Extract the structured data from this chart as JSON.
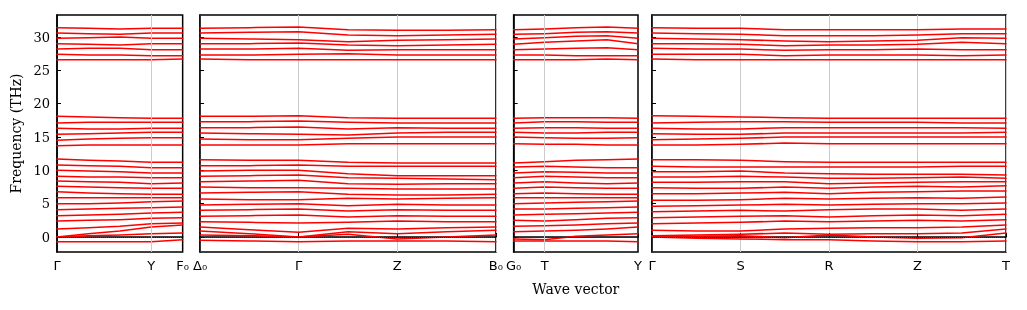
{
  "chart_data": [
    {
      "type": "line",
      "ylabel": "Frequency (THz)",
      "categories": [
        "Γ",
        null,
        null,
        "Y",
        "F₀"
      ],
      "ylim": [
        -2.25,
        33.3
      ],
      "yticks": [
        0,
        5,
        10,
        15,
        20,
        25,
        30
      ],
      "ref_lines": [
        {
          "axis": "y",
          "value": 0,
          "color": "#0000ff",
          "line_style": "dotted"
        },
        {
          "axis": "x",
          "value": "Y",
          "color": "#cccccc",
          "line_style": "solid"
        }
      ],
      "series": [
        {
          "color": "#ff0000",
          "values": [
            -0.7,
            -0.7,
            -0.7,
            -0.7,
            -0.4
          ]
        },
        {
          "color": "#ff0000",
          "values": [
            0,
            0.2,
            0.3,
            0.5,
            0.6
          ]
        },
        {
          "color": "#ff0000",
          "values": [
            0,
            0.5,
            0.9,
            1.5,
            1.8
          ]
        },
        {
          "color": "#ff0000",
          "values": [
            1.2,
            1.4,
            1.6,
            2.0,
            2.1
          ]
        },
        {
          "color": "#ff0000",
          "values": [
            2.4,
            2.5,
            2.6,
            2.8,
            2.9
          ]
        },
        {
          "color": "#ff0000",
          "values": [
            3.2,
            3.3,
            3.4,
            3.6,
            3.7
          ]
        },
        {
          "color": "#ff0000",
          "values": [
            4.1,
            4.2,
            4.3,
            4.4,
            4.5
          ]
        },
        {
          "color": "#ff0000",
          "values": [
            5.0,
            5.0,
            5.1,
            5.3,
            5.4
          ]
        },
        {
          "color": "#ff0000",
          "values": [
            5.9,
            5.9,
            5.9,
            5.9,
            5.9
          ]
        },
        {
          "color": "#ff0000",
          "values": [
            6.8,
            6.6,
            6.5,
            6.4,
            6.4
          ]
        },
        {
          "color": "#ff0000",
          "values": [
            7.6,
            7.5,
            7.4,
            7.3,
            7.3
          ]
        },
        {
          "color": "#ff0000",
          "values": [
            8.4,
            8.3,
            8.2,
            8.0,
            8.1
          ]
        },
        {
          "color": "#ff0000",
          "values": [
            9.1,
            9.0,
            9.0,
            8.9,
            8.9
          ]
        },
        {
          "color": "#ff0000",
          "values": [
            10.0,
            9.9,
            9.8,
            9.6,
            9.6
          ]
        },
        {
          "color": "#ff0000",
          "values": [
            10.8,
            10.7,
            10.6,
            10.4,
            10.4
          ]
        },
        {
          "color": "#ff0000",
          "values": [
            11.7,
            11.5,
            11.4,
            11.2,
            11.2
          ]
        },
        {
          "color": "#ff0000",
          "values": [
            13.7,
            13.8,
            13.8,
            13.8,
            13.8
          ]
        },
        {
          "color": "#ff0000",
          "values": [
            14.5,
            14.7,
            14.8,
            14.9,
            14.9
          ]
        },
        {
          "color": "#ff0000",
          "values": [
            15.4,
            15.5,
            15.6,
            15.7,
            15.7
          ]
        },
        {
          "color": "#ff0000",
          "values": [
            16.3,
            16.2,
            16.2,
            16.3,
            16.3
          ]
        },
        {
          "color": "#ff0000",
          "values": [
            17.1,
            17.2,
            17.2,
            17.2,
            17.2
          ]
        },
        {
          "color": "#ff0000",
          "values": [
            18.1,
            18.0,
            17.9,
            17.8,
            17.8
          ]
        },
        {
          "color": "#ff0000",
          "values": [
            26.6,
            26.6,
            26.6,
            26.6,
            26.7
          ]
        },
        {
          "color": "#ff0000",
          "values": [
            27.4,
            27.3,
            27.3,
            27.2,
            27.2
          ]
        },
        {
          "color": "#ff0000",
          "values": [
            28.2,
            28.3,
            28.3,
            28.1,
            28.1
          ]
        },
        {
          "color": "#ff0000",
          "values": [
            29.0,
            28.9,
            28.8,
            29.0,
            29.0
          ]
        },
        {
          "color": "#ff0000",
          "values": [
            29.8,
            29.9,
            30.0,
            29.8,
            29.8
          ]
        },
        {
          "color": "#ff0000",
          "values": [
            30.6,
            30.5,
            30.4,
            30.6,
            30.6
          ]
        },
        {
          "color": "#ff0000",
          "values": [
            31.4,
            31.3,
            31.2,
            31.3,
            31.3
          ]
        }
      ]
    },
    {
      "type": "line",
      "categories": [
        "Δ₀",
        null,
        "Γ",
        null,
        "Z",
        null,
        "B₀"
      ],
      "ylim": [
        -2.25,
        33.3
      ],
      "yticks": [
        0,
        5,
        10,
        15,
        20,
        25,
        30
      ],
      "tick_labels": "x",
      "grid": "x",
      "ref_lines": [
        {
          "axis": "y",
          "value": 0,
          "color": "#0000ff",
          "line_style": "dotted"
        }
      ],
      "series": [
        {
          "color": "#ff0000",
          "values": [
            -0.5,
            -0.6,
            -0.7,
            -0.6,
            -0.6,
            -0.6,
            -0.7
          ]
        },
        {
          "color": "#ff0000",
          "values": [
            0.3,
            0.2,
            0,
            0.4,
            -0.3,
            0,
            0.3
          ]
        },
        {
          "color": "#ff0000",
          "values": [
            0.9,
            0.5,
            0,
            0.8,
            0.5,
            0.8,
            1.0
          ]
        },
        {
          "color": "#ff0000",
          "values": [
            1.5,
            1.1,
            0.7,
            1.3,
            1.2,
            1.4,
            1.5
          ]
        },
        {
          "color": "#ff0000",
          "values": [
            2.3,
            2.2,
            2.1,
            2.2,
            2.4,
            2.3,
            2.3
          ]
        },
        {
          "color": "#ff0000",
          "values": [
            3.1,
            3.2,
            3.3,
            3.0,
            3.2,
            3.1,
            3.1
          ]
        },
        {
          "color": "#ff0000",
          "values": [
            4.0,
            4.1,
            4.2,
            3.9,
            4.1,
            4.0,
            4.0
          ]
        },
        {
          "color": "#ff0000",
          "values": [
            4.8,
            4.9,
            5.0,
            4.7,
            4.9,
            4.8,
            4.8
          ]
        },
        {
          "color": "#ff0000",
          "values": [
            5.7,
            5.6,
            5.6,
            5.8,
            5.7,
            5.8,
            5.9
          ]
        },
        {
          "color": "#ff0000",
          "values": [
            6.6,
            6.7,
            6.8,
            6.4,
            6.3,
            6.3,
            6.4
          ]
        },
        {
          "color": "#ff0000",
          "values": [
            7.5,
            7.4,
            7.4,
            7.3,
            7.2,
            7.2,
            7.2
          ]
        },
        {
          "color": "#ff0000",
          "values": [
            8.3,
            8.4,
            8.5,
            8.0,
            7.9,
            8.0,
            8.0
          ]
        },
        {
          "color": "#ff0000",
          "values": [
            9.1,
            9.2,
            9.3,
            8.9,
            8.8,
            8.7,
            8.6
          ]
        },
        {
          "color": "#ff0000",
          "values": [
            9.9,
            10.0,
            10.0,
            9.5,
            9.2,
            9.2,
            9.2
          ]
        },
        {
          "color": "#ff0000",
          "values": [
            10.7,
            10.7,
            10.8,
            10.6,
            10.6,
            10.6,
            10.6
          ]
        },
        {
          "color": "#ff0000",
          "values": [
            11.6,
            11.5,
            11.5,
            11.2,
            11.1,
            11.1,
            11.1
          ]
        },
        {
          "color": "#ff0000",
          "values": [
            13.8,
            13.8,
            13.8,
            14.0,
            14.0,
            14.0,
            14.0
          ]
        },
        {
          "color": "#ff0000",
          "values": [
            14.7,
            14.6,
            14.6,
            14.8,
            15.0,
            15.0,
            15.0
          ]
        },
        {
          "color": "#ff0000",
          "values": [
            15.6,
            15.5,
            15.4,
            15.3,
            15.6,
            15.7,
            15.7
          ]
        },
        {
          "color": "#ff0000",
          "values": [
            16.4,
            16.4,
            16.5,
            16.2,
            16.4,
            16.3,
            16.3
          ]
        },
        {
          "color": "#ff0000",
          "values": [
            17.3,
            17.3,
            17.4,
            17.2,
            17.1,
            17.1,
            17.1
          ]
        },
        {
          "color": "#ff0000",
          "values": [
            18.1,
            18.1,
            18.2,
            17.9,
            17.8,
            17.8,
            17.8
          ]
        },
        {
          "color": "#ff0000",
          "values": [
            26.7,
            26.6,
            26.6,
            26.6,
            26.6,
            26.6,
            26.6
          ]
        },
        {
          "color": "#ff0000",
          "values": [
            27.3,
            27.3,
            27.4,
            27.5,
            27.3,
            27.3,
            27.3
          ]
        },
        {
          "color": "#ff0000",
          "values": [
            28.2,
            28.2,
            28.3,
            28.0,
            28.1,
            28.1,
            28.1
          ]
        },
        {
          "color": "#ff0000",
          "values": [
            29.0,
            29.0,
            29.1,
            28.8,
            28.7,
            28.8,
            28.9
          ]
        },
        {
          "color": "#ff0000",
          "values": [
            29.8,
            29.7,
            29.6,
            29.3,
            29.5,
            29.6,
            29.7
          ]
        },
        {
          "color": "#ff0000",
          "values": [
            30.6,
            30.7,
            30.8,
            30.3,
            30.2,
            30.3,
            30.4
          ]
        },
        {
          "color": "#ff0000",
          "values": [
            31.3,
            31.4,
            31.5,
            31.1,
            31.0,
            31.0,
            31.1
          ]
        }
      ]
    },
    {
      "type": "line",
      "xlabel": "Wave vector",
      "categories": [
        "G₀",
        "T",
        null,
        null,
        "Y"
      ],
      "ylim": [
        -2.25,
        33.3
      ],
      "yticks": [
        0,
        5,
        10,
        15,
        20,
        25,
        30
      ],
      "tick_labels": "x",
      "ref_lines": [
        {
          "axis": "y",
          "value": 0,
          "color": "#0000ff",
          "line_style": "dotted"
        },
        {
          "axis": "x",
          "value": "T",
          "color": "#cccccc",
          "line_style": "solid"
        }
      ],
      "series": [
        {
          "color": "#ff0000",
          "values": [
            -0.6,
            -0.6,
            -0.6,
            -0.6,
            -0.7
          ]
        },
        {
          "color": "#ff0000",
          "values": [
            -0.3,
            -0.4,
            0.1,
            0.3,
            0.5
          ]
        },
        {
          "color": "#ff0000",
          "values": [
            0.8,
            0.9,
            1.0,
            1.2,
            1.5
          ]
        },
        {
          "color": "#ff0000",
          "values": [
            1.6,
            1.7,
            1.8,
            2.0,
            2.1
          ]
        },
        {
          "color": "#ff0000",
          "values": [
            2.5,
            2.4,
            2.6,
            2.8,
            2.9
          ]
        },
        {
          "color": "#ff0000",
          "values": [
            3.3,
            3.4,
            3.5,
            3.6,
            3.7
          ]
        },
        {
          "color": "#ff0000",
          "values": [
            4.2,
            4.2,
            4.3,
            4.4,
            4.5
          ]
        },
        {
          "color": "#ff0000",
          "values": [
            5.0,
            5.1,
            5.2,
            5.3,
            5.4
          ]
        },
        {
          "color": "#ff0000",
          "values": [
            5.9,
            5.9,
            5.9,
            5.9,
            5.9
          ]
        },
        {
          "color": "#ff0000",
          "values": [
            6.5,
            6.6,
            6.5,
            6.4,
            6.4
          ]
        },
        {
          "color": "#ff0000",
          "values": [
            7.3,
            7.5,
            7.4,
            7.3,
            7.3
          ]
        },
        {
          "color": "#ff0000",
          "values": [
            8.1,
            8.3,
            8.1,
            8.0,
            8.1
          ]
        },
        {
          "color": "#ff0000",
          "values": [
            8.9,
            9.1,
            9.0,
            8.9,
            8.9
          ]
        },
        {
          "color": "#ff0000",
          "values": [
            9.6,
            9.8,
            9.7,
            9.6,
            9.6
          ]
        },
        {
          "color": "#ff0000",
          "values": [
            10.5,
            10.6,
            10.5,
            10.4,
            10.4
          ]
        },
        {
          "color": "#ff0000",
          "values": [
            11.1,
            11.3,
            11.5,
            11.6,
            11.7
          ]
        },
        {
          "color": "#ff0000",
          "values": [
            14.0,
            13.9,
            13.9,
            13.8,
            13.8
          ]
        },
        {
          "color": "#ff0000",
          "values": [
            15.0,
            14.9,
            14.8,
            14.8,
            14.9
          ]
        },
        {
          "color": "#ff0000",
          "values": [
            15.7,
            15.6,
            15.6,
            15.7,
            15.7
          ]
        },
        {
          "color": "#ff0000",
          "values": [
            16.3,
            16.4,
            16.4,
            16.3,
            16.3
          ]
        },
        {
          "color": "#ff0000",
          "values": [
            17.1,
            17.3,
            17.3,
            17.2,
            17.2
          ]
        },
        {
          "color": "#ff0000",
          "values": [
            17.8,
            17.9,
            17.9,
            17.9,
            17.8
          ]
        },
        {
          "color": "#ff0000",
          "values": [
            26.6,
            26.6,
            26.6,
            26.7,
            26.6
          ]
        },
        {
          "color": "#ff0000",
          "values": [
            27.3,
            27.3,
            27.2,
            27.2,
            27.2
          ]
        },
        {
          "color": "#ff0000",
          "values": [
            28.1,
            28.2,
            28.3,
            28.4,
            28.1
          ]
        },
        {
          "color": "#ff0000",
          "values": [
            28.9,
            29.2,
            29.4,
            29.6,
            29.0
          ]
        },
        {
          "color": "#ff0000",
          "values": [
            29.7,
            29.9,
            30.1,
            30.2,
            29.8
          ]
        },
        {
          "color": "#ff0000",
          "values": [
            30.4,
            30.5,
            30.7,
            30.8,
            30.6
          ]
        },
        {
          "color": "#ff0000",
          "values": [
            31.1,
            31.2,
            31.4,
            31.5,
            31.3
          ]
        }
      ]
    },
    {
      "type": "line",
      "categories": [
        "Γ",
        null,
        "S",
        null,
        "R",
        null,
        "Z",
        null,
        "T"
      ],
      "ylim": [
        -2.25,
        33.3
      ],
      "yticks": [
        0,
        5,
        10,
        15,
        20,
        25,
        30
      ],
      "tick_labels": "x",
      "grid": "x",
      "ref_lines": [
        {
          "axis": "y",
          "value": 0,
          "color": "#0000ff",
          "line_style": "dotted"
        }
      ],
      "series": [
        {
          "color": "#ff0000",
          "values": [
            0,
            -0.2,
            -0.3,
            -0.4,
            -0.4,
            -0.6,
            -0.7,
            -0.7,
            -0.6
          ]
        },
        {
          "color": "#ff0000",
          "values": [
            0.1,
            0.1,
            0.2,
            -0.1,
            0.3,
            0,
            -0.2,
            -0.1,
            0.6
          ]
        },
        {
          "color": "#ff0000",
          "values": [
            0.2,
            0.3,
            0.4,
            0.6,
            0.4,
            0.5,
            0.5,
            0.6,
            1.2
          ]
        },
        {
          "color": "#ff0000",
          "values": [
            1.0,
            0.9,
            0.9,
            1.2,
            1.3,
            1.4,
            1.4,
            1.5,
            1.8
          ]
        },
        {
          "color": "#ff0000",
          "values": [
            2.0,
            2.1,
            2.2,
            2.4,
            2.3,
            2.4,
            2.5,
            2.4,
            2.6
          ]
        },
        {
          "color": "#ff0000",
          "values": [
            2.9,
            3.0,
            3.1,
            3.2,
            3.0,
            3.2,
            3.3,
            3.2,
            3.4
          ]
        },
        {
          "color": "#ff0000",
          "values": [
            3.8,
            3.9,
            4.0,
            3.9,
            4.1,
            4.2,
            4.2,
            4.0,
            4.2
          ]
        },
        {
          "color": "#ff0000",
          "values": [
            4.6,
            4.7,
            4.8,
            4.9,
            4.8,
            4.9,
            5.0,
            5.0,
            5.1
          ]
        },
        {
          "color": "#ff0000",
          "values": [
            5.5,
            5.5,
            5.6,
            5.8,
            5.7,
            5.8,
            5.9,
            5.8,
            6.0
          ]
        },
        {
          "color": "#ff0000",
          "values": [
            6.5,
            6.5,
            6.6,
            6.7,
            6.5,
            6.7,
            6.8,
            6.9,
            6.9
          ]
        },
        {
          "color": "#ff0000",
          "values": [
            7.4,
            7.3,
            7.3,
            7.5,
            7.3,
            7.5,
            7.6,
            7.5,
            7.7
          ]
        },
        {
          "color": "#ff0000",
          "values": [
            8.2,
            8.2,
            8.3,
            8.3,
            8.0,
            8.1,
            8.2,
            8.3,
            8.3
          ]
        },
        {
          "color": "#ff0000",
          "values": [
            9.0,
            9.0,
            9.1,
            9.0,
            8.8,
            8.8,
            8.9,
            9.0,
            8.8
          ]
        },
        {
          "color": "#ff0000",
          "values": [
            9.8,
            9.8,
            9.9,
            9.6,
            9.5,
            9.4,
            9.4,
            9.4,
            9.3
          ]
        },
        {
          "color": "#ff0000",
          "values": [
            10.6,
            10.5,
            10.5,
            10.5,
            10.5,
            10.5,
            10.5,
            10.6,
            10.6
          ]
        },
        {
          "color": "#ff0000",
          "values": [
            11.6,
            11.6,
            11.5,
            11.3,
            11.2,
            11.2,
            11.2,
            11.2,
            11.2
          ]
        },
        {
          "color": "#ff0000",
          "values": [
            13.8,
            13.8,
            13.9,
            14.1,
            14.0,
            14.0,
            14.0,
            14.0,
            14.0
          ]
        },
        {
          "color": "#ff0000",
          "values": [
            14.6,
            14.7,
            14.8,
            15.0,
            15.0,
            15.0,
            15.0,
            15.0,
            15.0
          ]
        },
        {
          "color": "#ff0000",
          "values": [
            15.5,
            15.4,
            15.4,
            15.6,
            15.6,
            15.6,
            15.6,
            15.6,
            15.7
          ]
        },
        {
          "color": "#ff0000",
          "values": [
            16.3,
            16.2,
            16.2,
            16.4,
            16.4,
            16.4,
            16.4,
            16.4,
            16.3
          ]
        },
        {
          "color": "#ff0000",
          "values": [
            17.1,
            17.2,
            17.3,
            17.3,
            17.2,
            17.2,
            17.2,
            17.1,
            17.1
          ]
        },
        {
          "color": "#ff0000",
          "values": [
            18.2,
            18.1,
            18.0,
            17.9,
            17.8,
            17.8,
            17.8,
            17.8,
            17.8
          ]
        },
        {
          "color": "#ff0000",
          "values": [
            26.7,
            26.6,
            26.6,
            26.6,
            26.6,
            26.6,
            26.6,
            26.6,
            26.6
          ]
        },
        {
          "color": "#ff0000",
          "values": [
            27.4,
            27.4,
            27.4,
            27.2,
            27.3,
            27.3,
            27.3,
            27.2,
            27.3
          ]
        },
        {
          "color": "#ff0000",
          "values": [
            28.3,
            28.2,
            28.2,
            28.0,
            28.1,
            28.1,
            28.2,
            28.1,
            28.1
          ]
        },
        {
          "color": "#ff0000",
          "values": [
            29.0,
            29.0,
            28.9,
            28.7,
            28.8,
            28.8,
            28.9,
            29.2,
            29.0
          ]
        },
        {
          "color": "#ff0000",
          "values": [
            29.8,
            29.7,
            29.6,
            29.4,
            29.3,
            29.4,
            29.5,
            29.9,
            29.8
          ]
        },
        {
          "color": "#ff0000",
          "values": [
            30.6,
            30.5,
            30.4,
            30.2,
            30.2,
            30.2,
            30.3,
            30.5,
            30.5
          ]
        },
        {
          "color": "#ff0000",
          "values": [
            31.4,
            31.3,
            31.3,
            31.1,
            31.1,
            31.1,
            31.1,
            31.2,
            31.2
          ]
        }
      ]
    }
  ]
}
